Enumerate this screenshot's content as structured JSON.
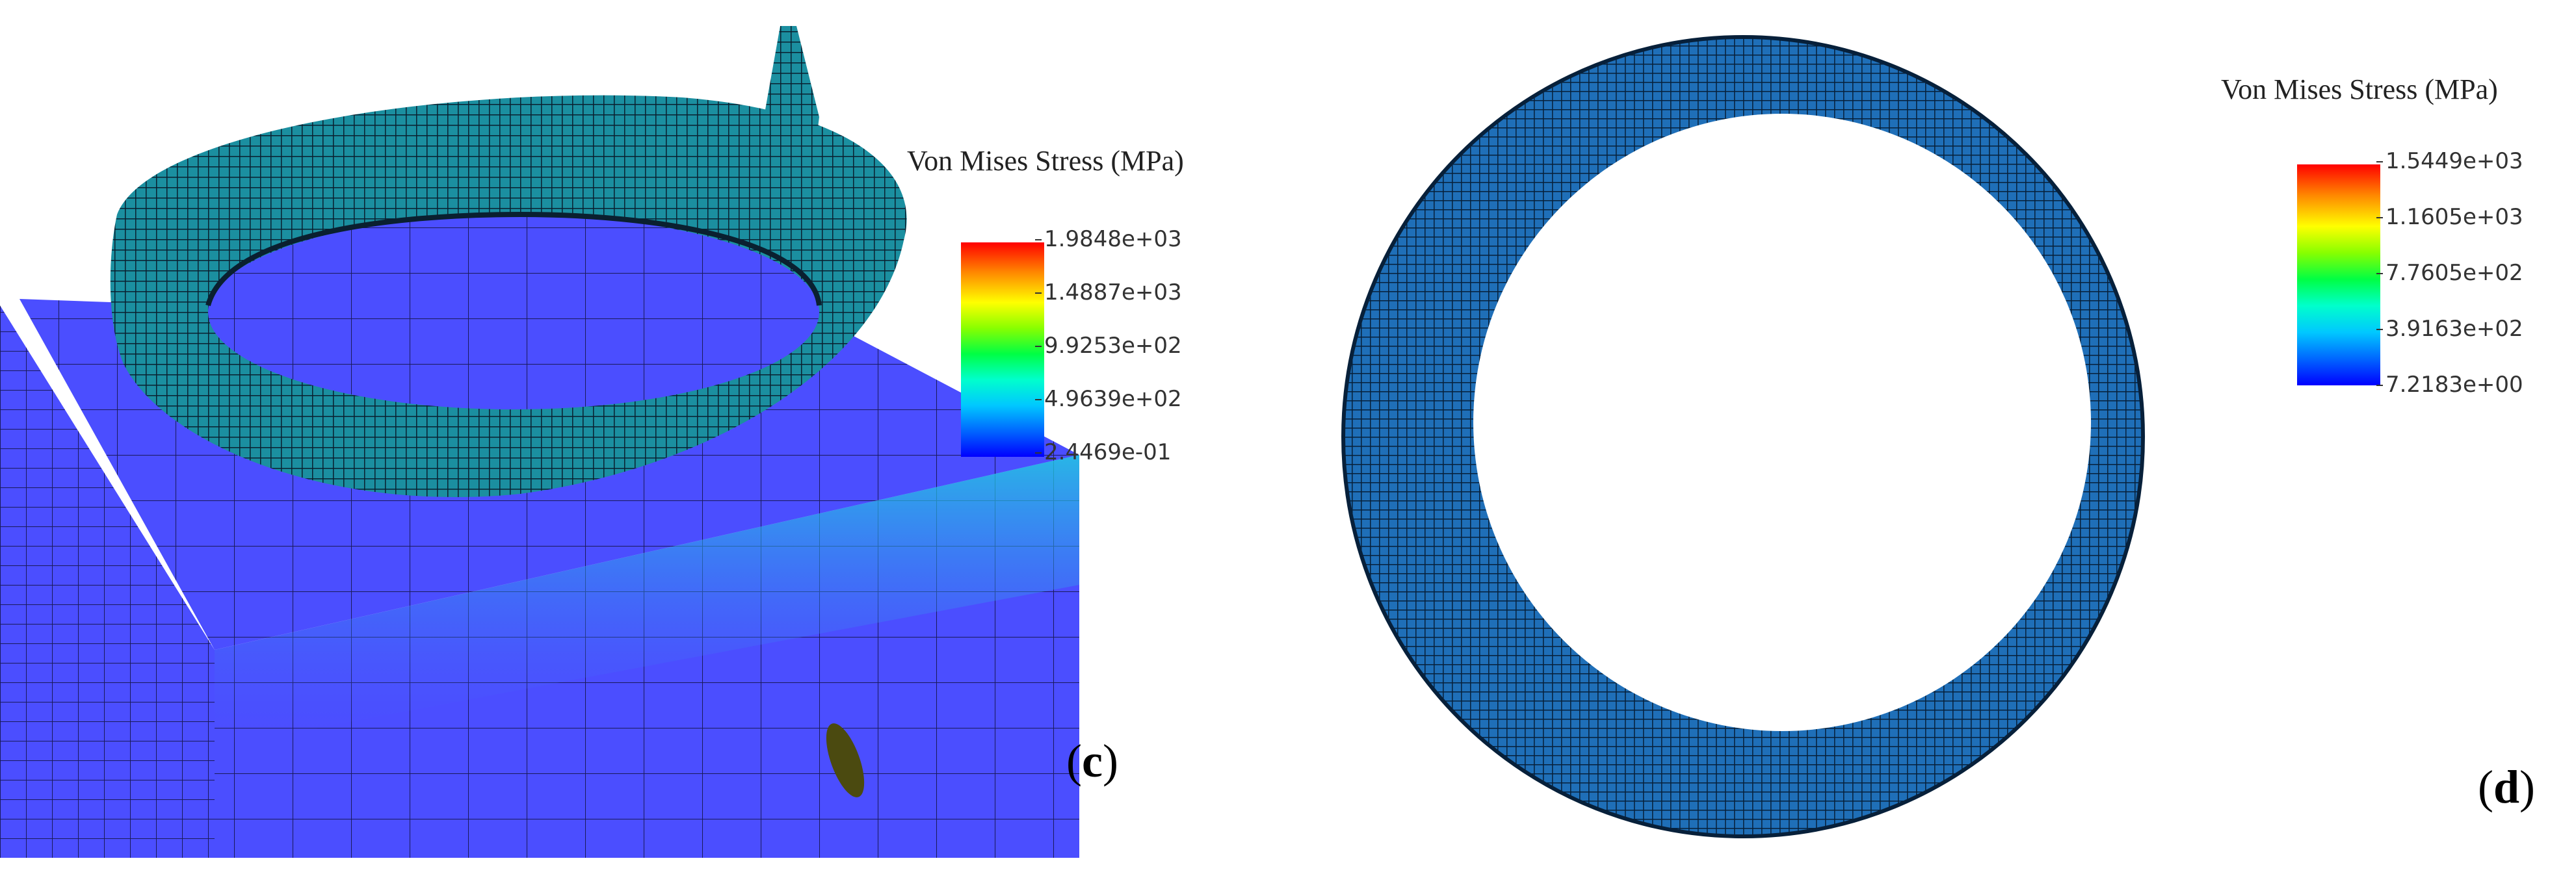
{
  "panels": [
    {
      "id": "c",
      "label_open": "(",
      "label_letter": "c",
      "label_close": ")",
      "legend": {
        "title": "Von Mises Stress (MPa)",
        "ticks": [
          "1.9848e+03",
          "1.4887e+03",
          "9.9253e+02",
          "4.9639e+02",
          "2.4469e-01"
        ]
      }
    },
    {
      "id": "d",
      "label_open": "(",
      "label_letter": "d",
      "label_close": ")",
      "legend": {
        "title": "Von Mises Stress (MPa)",
        "ticks": [
          "1.5449e+03",
          "1.1605e+03",
          "7.7605e+02",
          "3.9163e+02",
          "7.2183e+00"
        ]
      }
    }
  ],
  "colors": {
    "block_blue": "#4a4dff",
    "block_dark": "#2a2fd8",
    "mesh_cyan": "#1fb4c0",
    "mesh_dark": "#0b2a3a",
    "ring_blue": "#2c6fd1",
    "ring_dark": "#0a2848"
  }
}
